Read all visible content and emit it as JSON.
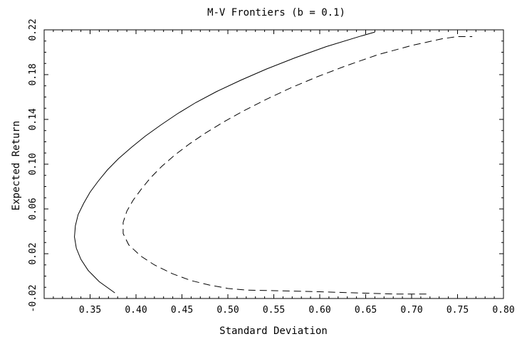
{
  "chart_data": {
    "type": "line",
    "title": "M-V Frontiers (b = 0.1)",
    "xlabel": "Standard Deviation",
    "ylabel": "Expected Return",
    "xlim": [
      0.3,
      0.8
    ],
    "ylim": [
      -0.02,
      0.22
    ],
    "x_ticks": [
      "0.35",
      "0.40",
      "0.45",
      "0.50",
      "0.55",
      "0.60",
      "0.65",
      "0.70",
      "0.75",
      "0.80"
    ],
    "y_ticks": [
      "-0.02",
      "0.02",
      "0.06",
      "0.10",
      "0.14",
      "0.18",
      "0.22"
    ],
    "x_tick_values": [
      0.35,
      0.4,
      0.45,
      0.5,
      0.55,
      0.6,
      0.65,
      0.7,
      0.75,
      0.8
    ],
    "y_tick_values": [
      -0.02,
      0.02,
      0.06,
      0.1,
      0.14,
      0.18,
      0.22
    ],
    "series": [
      {
        "style": "solid",
        "color": "#000000",
        "points": [
          [
            0.377,
            -0.015
          ],
          [
            0.36,
            -0.005
          ],
          [
            0.348,
            0.005
          ],
          [
            0.34,
            0.015
          ],
          [
            0.335,
            0.025
          ],
          [
            0.333,
            0.035
          ],
          [
            0.334,
            0.045
          ],
          [
            0.337,
            0.055
          ],
          [
            0.343,
            0.065
          ],
          [
            0.35,
            0.075
          ],
          [
            0.359,
            0.085
          ],
          [
            0.369,
            0.095
          ],
          [
            0.381,
            0.105
          ],
          [
            0.395,
            0.115
          ],
          [
            0.41,
            0.125
          ],
          [
            0.427,
            0.135
          ],
          [
            0.445,
            0.145
          ],
          [
            0.465,
            0.155
          ],
          [
            0.488,
            0.165
          ],
          [
            0.514,
            0.175
          ],
          [
            0.542,
            0.185
          ],
          [
            0.573,
            0.195
          ],
          [
            0.607,
            0.205
          ],
          [
            0.643,
            0.214
          ],
          [
            0.66,
            0.218
          ]
        ]
      },
      {
        "style": "dashed",
        "color": "#000000",
        "points": [
          [
            0.716,
            -0.016
          ],
          [
            0.68,
            -0.016
          ],
          [
            0.64,
            -0.015
          ],
          [
            0.6,
            -0.014
          ],
          [
            0.55,
            -0.013
          ],
          [
            0.52,
            -0.0125
          ],
          [
            0.5,
            -0.011
          ],
          [
            0.48,
            -0.008
          ],
          [
            0.46,
            -0.004
          ],
          [
            0.44,
            0.002
          ],
          [
            0.42,
            0.01
          ],
          [
            0.405,
            0.018
          ],
          [
            0.392,
            0.028
          ],
          [
            0.386,
            0.038
          ],
          [
            0.386,
            0.048
          ],
          [
            0.39,
            0.058
          ],
          [
            0.397,
            0.068
          ],
          [
            0.406,
            0.078
          ],
          [
            0.416,
            0.088
          ],
          [
            0.428,
            0.098
          ],
          [
            0.442,
            0.108
          ],
          [
            0.458,
            0.118
          ],
          [
            0.476,
            0.128
          ],
          [
            0.496,
            0.138
          ],
          [
            0.518,
            0.148
          ],
          [
            0.542,
            0.158
          ],
          [
            0.568,
            0.168
          ],
          [
            0.597,
            0.178
          ],
          [
            0.629,
            0.188
          ],
          [
            0.664,
            0.198
          ],
          [
            0.7,
            0.206
          ],
          [
            0.733,
            0.212
          ],
          [
            0.75,
            0.214
          ],
          [
            0.766,
            0.214
          ]
        ]
      }
    ]
  }
}
